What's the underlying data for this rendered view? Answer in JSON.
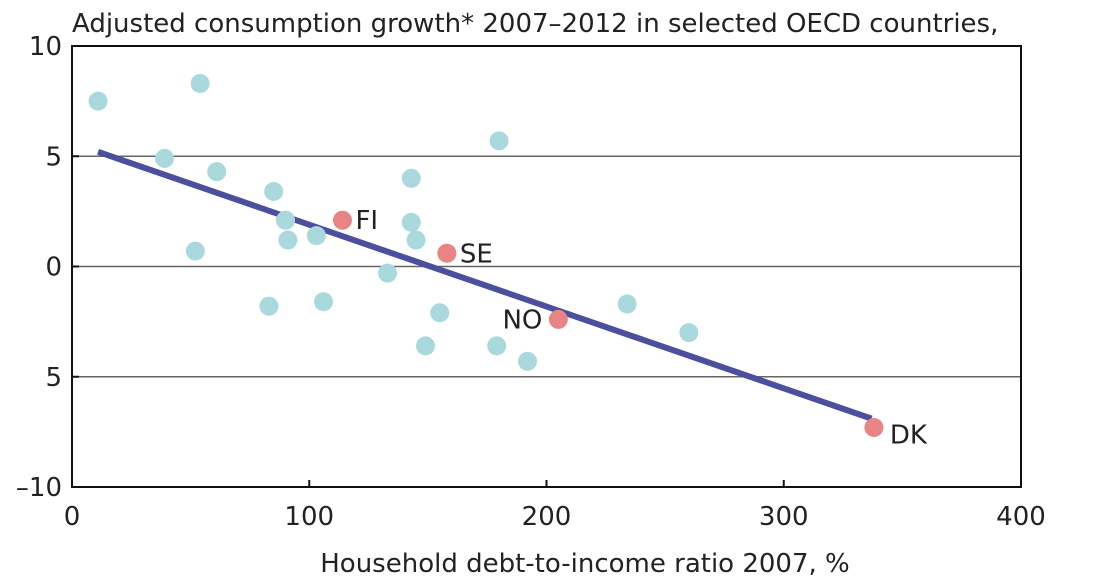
{
  "chart_data": {
    "type": "scatter",
    "title": "Adjusted consumption growth* 2007–2012 in selected OECD countries,",
    "xlabel": "Household debt-to-income ratio 2007, %",
    "ylabel": "",
    "xlim": [
      0,
      400
    ],
    "ylim": [
      -10,
      10
    ],
    "x_ticks": [
      0,
      100,
      200,
      300,
      400
    ],
    "y_ticks": [
      10,
      5,
      0,
      -5,
      -10
    ],
    "y_tick_labels": [
      "10",
      "5",
      "0",
      "5",
      "–10"
    ],
    "grid": "horizontal",
    "colors": {
      "background_points": "#a9d9dc",
      "highlighted_points": "#e98484",
      "trendline": "#4b4f9d",
      "grid": "#666666",
      "axes": "#111111",
      "text": "#222222"
    },
    "series": [
      {
        "points": [
          {
            "x": 11,
            "y": 7.5
          },
          {
            "x": 39,
            "y": 4.9
          },
          {
            "x": 52,
            "y": 0.7
          },
          {
            "x": 54,
            "y": 8.3
          },
          {
            "x": 61,
            "y": 4.3
          },
          {
            "x": 83,
            "y": -1.8
          },
          {
            "x": 85,
            "y": 3.4
          },
          {
            "x": 90,
            "y": 2.1
          },
          {
            "x": 91,
            "y": 1.2
          },
          {
            "x": 103,
            "y": 1.4
          },
          {
            "x": 106,
            "y": -1.6
          },
          {
            "x": 133,
            "y": -0.3
          },
          {
            "x": 143,
            "y": 4.0
          },
          {
            "x": 143,
            "y": 2.0
          },
          {
            "x": 145,
            "y": 1.2
          },
          {
            "x": 149,
            "y": -3.6
          },
          {
            "x": 155,
            "y": -2.1
          },
          {
            "x": 179,
            "y": -3.6
          },
          {
            "x": 180,
            "y": 5.7
          },
          {
            "x": 192,
            "y": -4.3
          },
          {
            "x": 234,
            "y": -1.7
          },
          {
            "x": 260,
            "y": -3.0
          }
        ]
      },
      {
        "points": [
          {
            "x": 114,
            "y": 2.1,
            "label": "FI"
          },
          {
            "x": 158,
            "y": 0.6,
            "label": "SE"
          },
          {
            "x": 205,
            "y": -2.4,
            "label": "NO"
          },
          {
            "x": 338,
            "y": -7.3,
            "label": "DK"
          }
        ]
      }
    ],
    "trendline": {
      "x": [
        11,
        337
      ],
      "y": [
        5.2,
        -6.9
      ]
    }
  }
}
